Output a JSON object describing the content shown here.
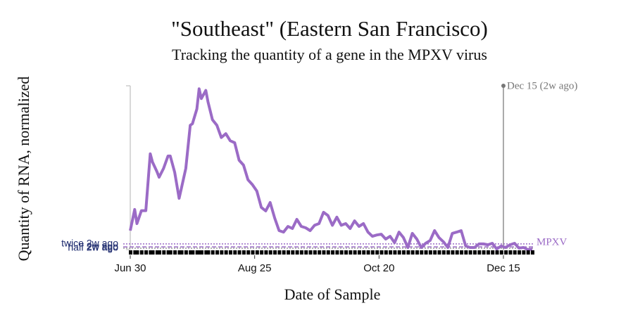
{
  "chart_data": {
    "type": "line",
    "title": "\"Southeast\" (Eastern San Francisco)",
    "subtitle": "Tracking the quantity of a gene in the MPXV virus",
    "x_label": "Date of Sample",
    "y_label": "Quantity of RNA, normalized",
    "x": [
      "06-30",
      "07-02",
      "07-03",
      "07-05",
      "07-07",
      "07-09",
      "07-10",
      "07-12",
      "07-13",
      "07-15",
      "07-17",
      "07-18",
      "07-20",
      "07-22",
      "07-23",
      "07-25",
      "07-27",
      "07-28",
      "07-30",
      "07-31",
      "08-01",
      "08-03",
      "08-04",
      "08-06",
      "08-08",
      "08-10",
      "08-12",
      "08-14",
      "08-16",
      "08-18",
      "08-20",
      "08-22",
      "08-24",
      "08-26",
      "08-28",
      "08-30",
      "09-01",
      "09-03",
      "09-05",
      "09-07",
      "09-09",
      "09-11",
      "09-13",
      "09-15",
      "09-17",
      "09-19",
      "09-21",
      "09-23",
      "09-25",
      "09-27",
      "09-29",
      "10-01",
      "10-03",
      "10-05",
      "10-07",
      "10-09",
      "10-11",
      "10-13",
      "10-15",
      "10-17",
      "10-19",
      "10-21",
      "10-23",
      "10-25",
      "10-27",
      "10-29",
      "10-31",
      "11-02",
      "11-04",
      "11-06",
      "11-08",
      "11-10",
      "11-12",
      "11-14",
      "11-16",
      "11-18",
      "11-20",
      "11-22",
      "11-24",
      "11-26",
      "11-28",
      "11-30",
      "12-02",
      "12-04",
      "12-06",
      "12-08",
      "12-10",
      "12-12",
      "12-14",
      "12-16",
      "12-18",
      "12-20",
      "12-22",
      "12-24",
      "12-26",
      "12-28"
    ],
    "series": [
      {
        "name": "MPXV",
        "color": "#9b6bc6",
        "values": [
          11.7,
          24.7,
          16,
          24,
          24,
          59,
          54,
          48,
          44.6,
          50,
          57.6,
          57.6,
          47.6,
          31.6,
          37.7,
          50,
          76.6,
          77.5,
          86.6,
          99,
          93,
          98,
          91,
          80,
          76.6,
          69,
          71.4,
          67,
          65.8,
          55,
          52,
          43,
          40,
          36,
          26,
          23.8,
          29,
          19.5,
          11.7,
          10.8,
          14.3,
          13,
          18.6,
          14.3,
          13.4,
          11.7,
          15,
          16,
          23,
          21,
          15,
          20,
          15,
          16,
          13,
          17.7,
          14.3,
          16,
          10.8,
          8.2,
          9,
          9.5,
          6.5,
          8.2,
          4.3,
          10.8,
          7.4,
          1.3,
          10,
          6.5,
          1.3,
          3.9,
          5.6,
          11.7,
          7.4,
          4.8,
          1.3,
          10,
          10.8,
          11.7,
          2.2,
          1.3,
          1.3,
          3.5,
          3.5,
          3,
          3.9,
          0.4,
          2.2,
          1.3,
          3,
          3.9,
          0.9,
          1.3,
          0,
          0.4
        ]
      }
    ],
    "xlim": [
      "06-30",
      "12-28"
    ],
    "xticks": [
      {
        "value": "06-30",
        "label": "Jun 30"
      },
      {
        "value": "08-25",
        "label": "Aug 25"
      },
      {
        "value": "10-20",
        "label": "Oct 20"
      },
      {
        "value": "12-15",
        "label": "Dec 15"
      }
    ],
    "ylim": [
      0,
      100
    ],
    "reference_lines": [
      {
        "label": "twice 2w ago",
        "value": 3.5,
        "style": "dotted",
        "color": "#9b6bc6"
      },
      {
        "label": "2w ago",
        "value": 1.7,
        "style": "dashed",
        "color": "#9b6bc6"
      },
      {
        "label": "half 2w ago",
        "value": 0.85,
        "style": "dotted",
        "color": "#999999"
      }
    ],
    "marker": {
      "x": "12-15",
      "label": "Dec 15 (2w ago)"
    }
  }
}
